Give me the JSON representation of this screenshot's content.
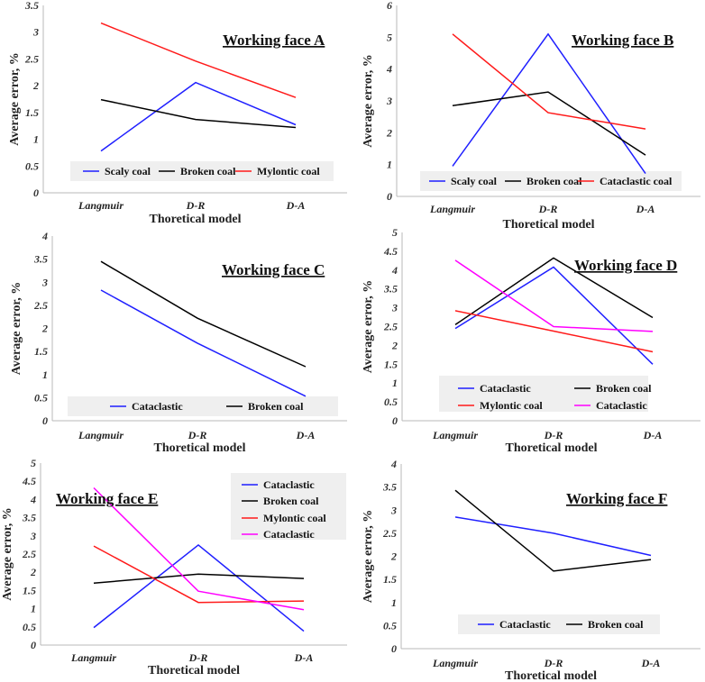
{
  "chart_data": [
    {
      "type": "line",
      "title": "Working face A",
      "xlabel": "Thoretical model",
      "ylabel": "Average error, %",
      "ylim": [
        0,
        3.5
      ],
      "yticks": [
        "0",
        "0.5",
        "1",
        "1.5",
        "2",
        "2.5",
        "3",
        "3.5"
      ],
      "categories": [
        "Langmuir",
        "D-R",
        "D-A"
      ],
      "legend_position": "bottom",
      "series": [
        {
          "name": "Scaly coal",
          "color": "#1f1fff",
          "values": [
            0.78,
            2.06,
            1.27
          ]
        },
        {
          "name": "Broken coal",
          "color": "#000000",
          "values": [
            1.74,
            1.37,
            1.22
          ]
        },
        {
          "name": "Mylontic coal",
          "color": "#ff1a1a",
          "values": [
            3.17,
            2.46,
            1.78
          ]
        }
      ]
    },
    {
      "type": "line",
      "title": "Working face B",
      "xlabel": "Thoretical model",
      "ylabel": "Average error, %",
      "ylim": [
        0,
        6
      ],
      "yticks": [
        "0",
        "1",
        "2",
        "3",
        "4",
        "5",
        "6"
      ],
      "categories": [
        "Langmuir",
        "D-R",
        "D-A"
      ],
      "legend_position": "bottom",
      "series": [
        {
          "name": "Scaly coal",
          "color": "#1f1fff",
          "values": [
            0.95,
            5.1,
            0.72
          ]
        },
        {
          "name": "Broken coal",
          "color": "#000000",
          "values": [
            2.85,
            3.28,
            1.3
          ]
        },
        {
          "name": "Cataclastic coal",
          "color": "#ff1a1a",
          "values": [
            5.1,
            2.63,
            2.12
          ]
        }
      ]
    },
    {
      "type": "line",
      "title": "Working face C",
      "xlabel": "Thoretical model",
      "ylabel": "Average error, %",
      "ylim": [
        0,
        4
      ],
      "yticks": [
        "0",
        "0.5",
        "1",
        "1.5",
        "2",
        "2.5",
        "3",
        "3.5",
        "4"
      ],
      "categories": [
        "Langmuir",
        "D-R",
        "D-A"
      ],
      "legend_position": "bottom",
      "series": [
        {
          "name": "Cataclastic",
          "color": "#1f1fff",
          "values": [
            2.83,
            1.68,
            0.53
          ]
        },
        {
          "name": "Broken coal",
          "color": "#000000",
          "values": [
            3.45,
            2.22,
            1.17
          ]
        }
      ]
    },
    {
      "type": "line",
      "title": "Working face D",
      "xlabel": "Thoretical model",
      "ylabel": "Average error, %",
      "ylim": [
        0,
        5
      ],
      "yticks": [
        "0",
        "0.5",
        "1",
        "1.5",
        "2",
        "2.5",
        "3",
        "3.5",
        "4",
        "4.5",
        "5"
      ],
      "categories": [
        "Langmuir",
        "D-R",
        "D-A"
      ],
      "legend_position": "bottom",
      "series": [
        {
          "name": "Cataclastic",
          "color": "#1f1fff",
          "values": [
            2.45,
            4.08,
            1.5
          ]
        },
        {
          "name": "Broken coal",
          "color": "#000000",
          "values": [
            2.55,
            4.32,
            2.74
          ]
        },
        {
          "name": "Mylontic coal",
          "color": "#ff1a1a",
          "values": [
            2.92,
            2.38,
            1.83
          ]
        },
        {
          "name": "Cataclastic",
          "color": "#ff00ff",
          "values": [
            4.26,
            2.5,
            2.37
          ]
        }
      ]
    },
    {
      "type": "line",
      "title": "Working face E",
      "xlabel": "Thoretical model",
      "ylabel": "Average error, %",
      "ylim": [
        0,
        5
      ],
      "yticks": [
        "0",
        "0.5",
        "1",
        "1.5",
        "2",
        "2.5",
        "3",
        "3.5",
        "4",
        "4.5",
        "5"
      ],
      "categories": [
        "Langmuir",
        "D-R",
        "D-A"
      ],
      "legend_position": "top-right",
      "series": [
        {
          "name": "Cataclastic",
          "color": "#1f1fff",
          "values": [
            0.48,
            2.75,
            0.38
          ]
        },
        {
          "name": "Broken coal",
          "color": "#000000",
          "values": [
            1.7,
            1.95,
            1.83
          ]
        },
        {
          "name": "Mylontic coal",
          "color": "#ff1a1a",
          "values": [
            2.72,
            1.17,
            1.21
          ]
        },
        {
          "name": "Cataclastic",
          "color": "#ff00ff",
          "values": [
            4.32,
            1.48,
            0.97
          ]
        }
      ]
    },
    {
      "type": "line",
      "title": "Working face F",
      "xlabel": "Thoretical model",
      "ylabel": "Average error, %",
      "ylim": [
        0,
        4
      ],
      "yticks": [
        "0",
        "0.5",
        "1",
        "1.5",
        "2",
        "2.5",
        "3",
        "3.5",
        "4"
      ],
      "categories": [
        "Langmuir",
        "D-R",
        "D-A"
      ],
      "legend_position": "bottom",
      "series": [
        {
          "name": "Cataclastic",
          "color": "#1f1fff",
          "values": [
            2.85,
            2.5,
            2.02
          ]
        },
        {
          "name": "Broken coal",
          "color": "#000000",
          "values": [
            3.43,
            1.68,
            1.93
          ]
        }
      ]
    }
  ]
}
